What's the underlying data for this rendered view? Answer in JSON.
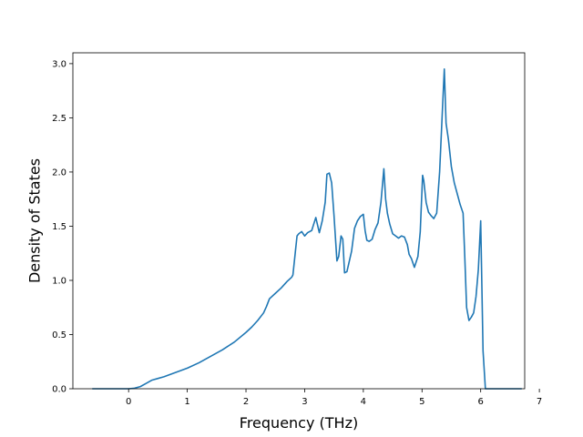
{
  "chart_data": {
    "type": "line",
    "title": "",
    "xlabel": "Frequency (THz)",
    "ylabel": "Density of States",
    "xlim": [
      -0.95,
      6.75
    ],
    "ylim": [
      0.0,
      3.1
    ],
    "xticks": [
      0,
      1,
      2,
      3,
      4,
      5,
      6,
      7
    ],
    "yticks": [
      0.0,
      0.5,
      1.0,
      1.5,
      2.0,
      2.5,
      3.0
    ],
    "xtick_labels": [
      "0",
      "1",
      "2",
      "3",
      "4",
      "5",
      "6",
      "7"
    ],
    "ytick_labels": [
      "0.0",
      "0.5",
      "1.0",
      "1.5",
      "2.0",
      "2.5",
      "3.0"
    ],
    "grid": false,
    "line_color": "#1f77b4",
    "series": [
      {
        "x": [
          -0.62,
          0.0,
          0.1,
          0.2,
          0.3,
          0.4,
          0.5,
          0.6,
          0.8,
          1.0,
          1.2,
          1.4,
          1.6,
          1.8,
          2.0,
          2.1,
          2.2,
          2.3,
          2.35,
          2.4,
          2.5,
          2.6,
          2.7,
          2.78,
          2.8,
          2.87,
          2.9,
          2.95,
          3.0,
          3.05,
          3.12,
          3.19,
          3.25,
          3.3,
          3.35,
          3.38,
          3.42,
          3.46,
          3.5,
          3.55,
          3.58,
          3.62,
          3.65,
          3.68,
          3.72,
          3.75,
          3.8,
          3.85,
          3.9,
          3.95,
          4.0,
          4.03,
          4.06,
          4.1,
          4.15,
          4.2,
          4.25,
          4.3,
          4.35,
          4.38,
          4.41,
          4.45,
          4.5,
          4.55,
          4.6,
          4.65,
          4.7,
          4.75,
          4.78,
          4.82,
          4.87,
          4.93,
          4.97,
          5.01,
          5.03,
          5.07,
          5.11,
          5.15,
          5.2,
          5.25,
          5.3,
          5.35,
          5.38,
          5.41,
          5.45,
          5.5,
          5.55,
          5.6,
          5.65,
          5.7,
          5.73,
          5.76,
          5.8,
          5.84,
          5.88,
          5.92,
          5.96,
          6.0,
          6.02,
          6.04,
          6.08,
          6.7
        ],
        "y": [
          0.0,
          0.0,
          0.005,
          0.02,
          0.05,
          0.08,
          0.095,
          0.11,
          0.15,
          0.19,
          0.24,
          0.3,
          0.36,
          0.43,
          0.52,
          0.57,
          0.63,
          0.7,
          0.76,
          0.83,
          0.88,
          0.93,
          0.99,
          1.03,
          1.05,
          1.41,
          1.43,
          1.45,
          1.41,
          1.44,
          1.46,
          1.58,
          1.44,
          1.55,
          1.72,
          1.98,
          1.99,
          1.9,
          1.6,
          1.18,
          1.22,
          1.41,
          1.38,
          1.07,
          1.08,
          1.15,
          1.27,
          1.48,
          1.55,
          1.59,
          1.61,
          1.46,
          1.37,
          1.36,
          1.38,
          1.47,
          1.53,
          1.72,
          2.03,
          1.75,
          1.62,
          1.52,
          1.43,
          1.41,
          1.39,
          1.41,
          1.4,
          1.33,
          1.24,
          1.2,
          1.12,
          1.22,
          1.45,
          1.97,
          1.92,
          1.72,
          1.63,
          1.6,
          1.57,
          1.62,
          2.0,
          2.6,
          2.95,
          2.45,
          2.3,
          2.05,
          1.9,
          1.8,
          1.7,
          1.62,
          1.2,
          0.75,
          0.63,
          0.66,
          0.7,
          0.85,
          1.1,
          1.55,
          0.95,
          0.35,
          0.0,
          0.0
        ]
      }
    ]
  }
}
